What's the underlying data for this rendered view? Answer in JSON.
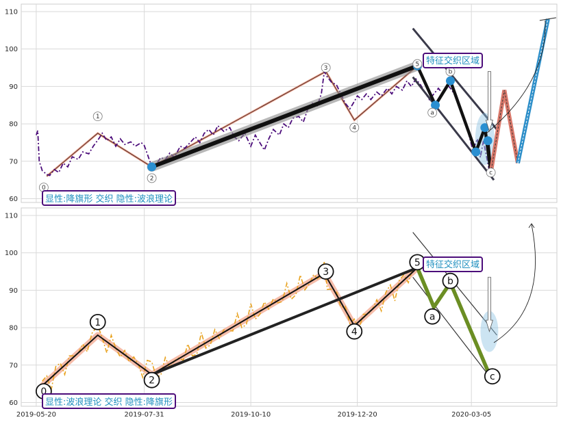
{
  "chart_data": [
    {
      "type": "line",
      "grid": true,
      "ylim": [
        59,
        112
      ],
      "yticks": [
        60,
        70,
        80,
        90,
        100,
        110
      ],
      "style": "dashdot",
      "price_color": "#4b0c7a",
      "price": [
        [
          "2019-05-20",
          77
        ],
        [
          "2019-05-21",
          78.2
        ],
        [
          "2019-05-22",
          70
        ],
        [
          "2019-05-24",
          67.5
        ],
        [
          "2019-05-27",
          66.5
        ],
        [
          "2019-05-29",
          66.2
        ],
        [
          "2019-06-01",
          67.8
        ],
        [
          "2019-06-04",
          67
        ],
        [
          "2019-06-07",
          69.5
        ],
        [
          "2019-06-10",
          68.5
        ],
        [
          "2019-06-13",
          71.2
        ],
        [
          "2019-06-17",
          70.5
        ],
        [
          "2019-06-20",
          72.5
        ],
        [
          "2019-06-24",
          72
        ],
        [
          "2019-06-27",
          74
        ],
        [
          "2019-07-01",
          76.2
        ],
        [
          "2019-07-03",
          77.5
        ],
        [
          "2019-07-06",
          75.5
        ],
        [
          "2019-07-09",
          76.5
        ],
        [
          "2019-07-12",
          74
        ],
        [
          "2019-07-15",
          76
        ],
        [
          "2019-07-18",
          74.5
        ],
        [
          "2019-07-22",
          75.2
        ],
        [
          "2019-07-25",
          74
        ],
        [
          "2019-07-29",
          75
        ],
        [
          "2019-07-31",
          74.2
        ],
        [
          "2019-08-02",
          72
        ],
        [
          "2019-08-05",
          68.5
        ],
        [
          "2019-08-08",
          69.2
        ],
        [
          "2019-08-11",
          71
        ],
        [
          "2019-08-14",
          70.5
        ],
        [
          "2019-08-17",
          72.2
        ],
        [
          "2019-08-20",
          71
        ],
        [
          "2019-08-24",
          74
        ],
        [
          "2019-08-27",
          73.5
        ],
        [
          "2019-08-31",
          75.2
        ],
        [
          "2019-09-03",
          76.5
        ],
        [
          "2019-09-06",
          75
        ],
        [
          "2019-09-09",
          77.5
        ],
        [
          "2019-09-12",
          78.5
        ],
        [
          "2019-09-15",
          77
        ],
        [
          "2019-09-18",
          79.5
        ],
        [
          "2019-09-22",
          78
        ],
        [
          "2019-09-26",
          79
        ],
        [
          "2019-09-29",
          76.5
        ],
        [
          "2019-10-02",
          75.5
        ],
        [
          "2019-10-06",
          77.5
        ],
        [
          "2019-10-10",
          74
        ],
        [
          "2019-10-13",
          77
        ],
        [
          "2019-10-16",
          75
        ],
        [
          "2019-10-19",
          73
        ],
        [
          "2019-10-22",
          76
        ],
        [
          "2019-10-25",
          78.5
        ],
        [
          "2019-10-29",
          77
        ],
        [
          "2019-11-01",
          80
        ],
        [
          "2019-11-04",
          79
        ],
        [
          "2019-11-07",
          81.5
        ],
        [
          "2019-11-11",
          82
        ],
        [
          "2019-11-14",
          80.5
        ],
        [
          "2019-11-17",
          84
        ],
        [
          "2019-11-20",
          85.5
        ],
        [
          "2019-11-23",
          84.5
        ],
        [
          "2019-11-26",
          88
        ],
        [
          "2019-11-28",
          94
        ],
        [
          "2019-11-30",
          92.5
        ],
        [
          "2019-12-03",
          91
        ],
        [
          "2019-12-06",
          90.5
        ],
        [
          "2019-12-09",
          88
        ],
        [
          "2019-12-12",
          85.5
        ],
        [
          "2019-12-15",
          84
        ],
        [
          "2019-12-18",
          86
        ],
        [
          "2019-12-20",
          87.5
        ],
        [
          "2019-12-23",
          86.5
        ],
        [
          "2019-12-26",
          88
        ],
        [
          "2019-12-29",
          86.5
        ],
        [
          "2020-01-02",
          88.5
        ],
        [
          "2020-01-05",
          87.5
        ],
        [
          "2020-01-09",
          89.5
        ],
        [
          "2020-01-12",
          88
        ],
        [
          "2020-01-15",
          90
        ],
        [
          "2020-01-19",
          89
        ],
        [
          "2020-01-22",
          91.5
        ],
        [
          "2020-01-25",
          90
        ],
        [
          "2020-01-28",
          92
        ],
        [
          "2020-01-31",
          90.5
        ],
        [
          "2020-02-03",
          88.5
        ],
        [
          "2020-02-06",
          86.5
        ],
        [
          "2020-02-09",
          88
        ],
        [
          "2020-02-12",
          89.5
        ],
        [
          "2020-02-15",
          88
        ],
        [
          "2020-02-18",
          90.5
        ],
        [
          "2020-02-21",
          89
        ],
        [
          "2020-02-24",
          87
        ],
        [
          "2020-02-27",
          84
        ],
        [
          "2020-03-01",
          80
        ],
        [
          "2020-03-03",
          77.5
        ],
        [
          "2020-03-06",
          73
        ],
        [
          "2020-03-09",
          76
        ],
        [
          "2020-03-11",
          71
        ],
        [
          "2020-03-13",
          75.5
        ],
        [
          "2020-03-15",
          71.5
        ],
        [
          "2020-03-17",
          67.5
        ]
      ],
      "wave_line": [
        [
          "2019-05-27",
          66
        ],
        [
          "2019-06-30",
          77.5
        ],
        [
          "2019-08-05",
          68.5
        ],
        [
          "2019-11-29",
          94
        ],
        [
          "2019-12-18",
          81
        ],
        [
          "2020-01-29",
          95.5
        ]
      ],
      "wave_points": [
        {
          "label": "0",
          "x": "2019-05-25",
          "y": 63
        },
        {
          "label": "1",
          "x": "2019-06-30",
          "y": 82
        },
        {
          "label": "2",
          "x": "2019-08-05",
          "y": 65.5
        },
        {
          "label": "3",
          "x": "2019-11-29",
          "y": 95
        },
        {
          "label": "4",
          "x": "2019-12-18",
          "y": 79
        },
        {
          "label": "5",
          "x": "2020-01-29",
          "y": 96
        },
        {
          "label": "a",
          "x": "2020-02-08",
          "y": 83
        },
        {
          "label": "b",
          "x": "2020-02-20",
          "y": 94
        },
        {
          "label": "c",
          "x": "2020-03-18",
          "y": 67
        }
      ],
      "flag_pole": [
        [
          "2019-08-05",
          68.5
        ],
        [
          "2020-01-29",
          95.5
        ]
      ],
      "zigzag": [
        [
          "2020-01-29",
          95.5
        ],
        [
          "2020-02-10",
          85
        ],
        [
          "2020-02-20",
          91.5
        ],
        [
          "2020-03-08",
          72.5
        ],
        [
          "2020-03-14",
          79
        ],
        [
          "2020-03-18",
          67
        ],
        [
          "2020-03-16",
          75.5
        ]
      ],
      "channel_upper": [
        [
          "2020-01-26",
          105.5
        ],
        [
          "2020-03-23",
          78
        ]
      ],
      "channel_lower": [
        [
          "2020-01-26",
          92.5
        ],
        [
          "2020-03-20",
          65
        ]
      ],
      "projection_red": [
        [
          "2020-03-18",
          67
        ],
        [
          "2020-03-27",
          89
        ],
        [
          "2020-04-05",
          69.5
        ]
      ],
      "projection_blue": [
        [
          "2020-04-05",
          69.5
        ],
        [
          "2020-04-25",
          108
        ]
      ],
      "zone_label": "特征交织区域",
      "pattern_label": "显性:降旗形 交织 隐性:波浪理论"
    },
    {
      "type": "line",
      "grid": true,
      "ylim": [
        59,
        112
      ],
      "yticks": [
        60,
        70,
        80,
        90,
        100,
        110
      ],
      "style": "dashdot",
      "price_color": "#e8a21f",
      "wave_line": [
        [
          "2019-05-24",
          64.5
        ],
        [
          "2019-06-30",
          78
        ],
        [
          "2019-08-05",
          67.5
        ],
        [
          "2019-11-28",
          94.5
        ],
        [
          "2019-12-18",
          80.5
        ],
        [
          "2020-01-29",
          96
        ]
      ],
      "wave_points": [
        {
          "label": "0",
          "x": "2019-05-25",
          "y": 63
        },
        {
          "label": "1",
          "x": "2019-06-30",
          "y": 81.5
        },
        {
          "label": "2",
          "x": "2019-08-05",
          "y": 66
        },
        {
          "label": "3",
          "x": "2019-11-29",
          "y": 95
        },
        {
          "label": "4",
          "x": "2019-12-18",
          "y": 79
        },
        {
          "label": "5",
          "x": "2020-01-29",
          "y": 97.5
        },
        {
          "label": "a",
          "x": "2020-02-08",
          "y": 83
        },
        {
          "label": "b",
          "x": "2020-02-20",
          "y": 92.5
        },
        {
          "label": "c",
          "x": "2020-03-19",
          "y": 67
        }
      ],
      "flag_pole": [
        [
          "2019-08-05",
          67.5
        ],
        [
          "2020-01-29",
          96
        ]
      ],
      "zigzag": [
        [
          "2020-01-29",
          96
        ],
        [
          "2020-02-09",
          85.5
        ],
        [
          "2020-02-20",
          92
        ],
        [
          "2020-03-17",
          67.5
        ]
      ],
      "channel_upper": [
        [
          "2020-01-26",
          105.5
        ],
        [
          "2020-03-22",
          78
        ]
      ],
      "channel_lower": [
        [
          "2020-01-26",
          93.5
        ],
        [
          "2020-03-19",
          66
        ]
      ],
      "zone_label": "特征交织区域",
      "pattern_label": "显性:波浪理论 交织 隐性:降旗形"
    }
  ],
  "x_axis": {
    "start": "2019-05-10",
    "end": "2020-05-01",
    "tick_dates": [
      "2019-05-20",
      "2019-07-31",
      "2019-10-10",
      "2019-12-20",
      "2020-03-05"
    ],
    "tick_labels": [
      "2019-05-20",
      "2019-07-31",
      "2019-10-10",
      "2019-12-20",
      "2020-03-05"
    ]
  }
}
